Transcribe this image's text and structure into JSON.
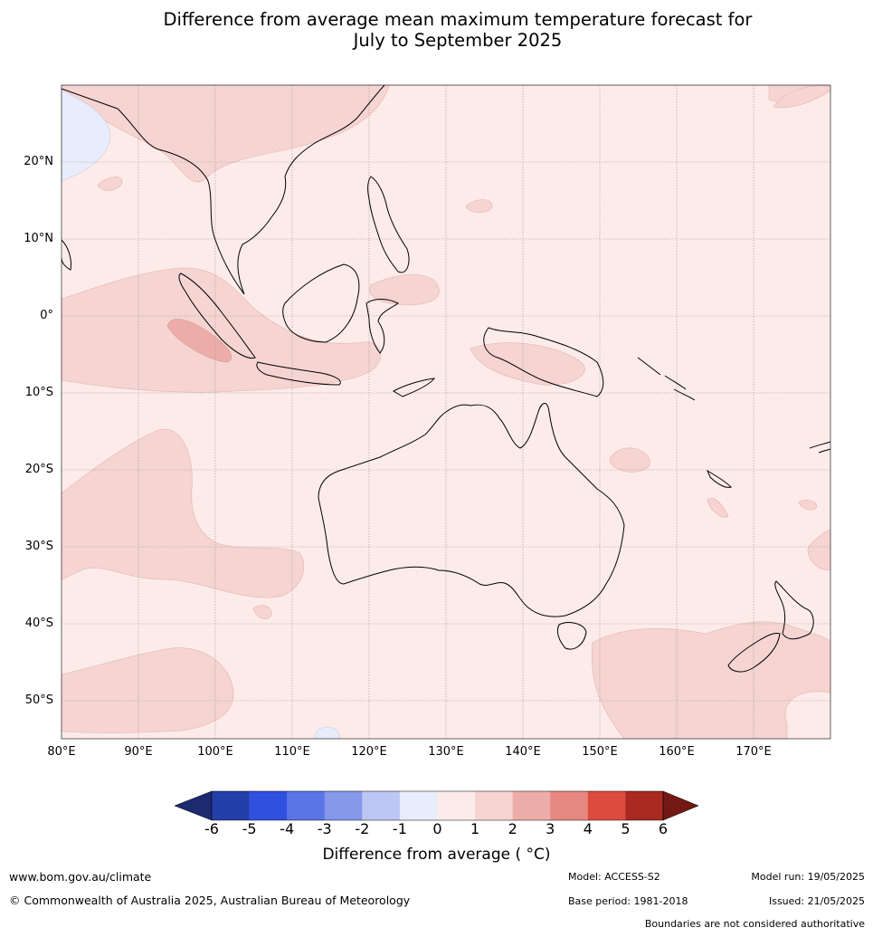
{
  "title": {
    "line1": "Difference from average mean maximum temperature forecast for",
    "line2": "July to September 2025"
  },
  "map": {
    "lon_range": [
      80,
      180
    ],
    "lat_range": [
      -55,
      30
    ],
    "lat_labels": [
      {
        "lat": 20,
        "text": "20°N"
      },
      {
        "lat": 10,
        "text": "10°N"
      },
      {
        "lat": 0,
        "text": "0°"
      },
      {
        "lat": -10,
        "text": "10°S"
      },
      {
        "lat": -20,
        "text": "20°S"
      },
      {
        "lat": -30,
        "text": "30°S"
      },
      {
        "lat": -40,
        "text": "40°S"
      },
      {
        "lat": -50,
        "text": "50°S"
      }
    ],
    "lon_labels": [
      {
        "lon": 80,
        "text": "80°E"
      },
      {
        "lon": 90,
        "text": "90°E"
      },
      {
        "lon": 100,
        "text": "100°E"
      },
      {
        "lon": 110,
        "text": "110°E"
      },
      {
        "lon": 120,
        "text": "120°E"
      },
      {
        "lon": 130,
        "text": "130°E"
      },
      {
        "lon": 140,
        "text": "140°E"
      },
      {
        "lon": 150,
        "text": "150°E"
      },
      {
        "lon": 160,
        "text": "160°E"
      },
      {
        "lon": 170,
        "text": "170°E"
      }
    ],
    "background_color": "#fcebe9"
  },
  "colorbar": {
    "ticks": [
      "-6",
      "-5",
      "-4",
      "-3",
      "-2",
      "-1",
      "0",
      "1",
      "2",
      "3",
      "4",
      "5",
      "6"
    ],
    "colors": [
      "#253fa9",
      "#3050e0",
      "#5a75e6",
      "#8698ea",
      "#bec7f3",
      "#e8ecfb",
      "#fcebe9",
      "#f5d4d2",
      "#ecada9",
      "#e68780",
      "#db4b3e",
      "#a92a21"
    ],
    "under_color": "#1c2b70",
    "over_color": "#731813",
    "label": "Difference from average ( °C)"
  },
  "footer": {
    "website": "www.bom.gov.au/climate",
    "copyright": "© Commonwealth of Australia 2025, Australian Bureau of Meteorology",
    "model": "Model: ACCESS-S2",
    "base_period": "Base period: 1981-2018",
    "model_run": "Model run: 19/05/2025",
    "issued": "Issued: 21/05/2025",
    "disclaimer": "Boundaries are not considered authoritative"
  }
}
